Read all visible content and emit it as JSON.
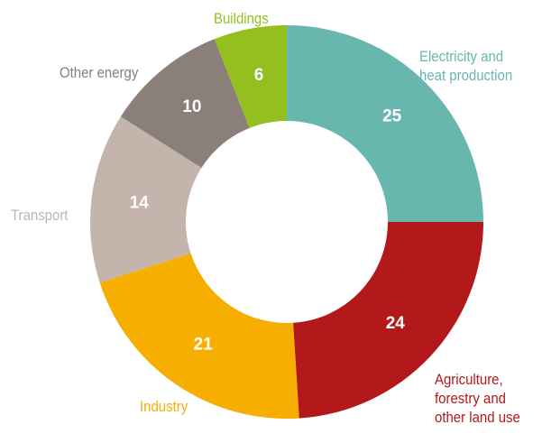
{
  "chart_data": {
    "type": "donut",
    "categories": [
      "Electricity and heat production",
      "Agriculture, forestry and other land use",
      "Industry",
      "Transport",
      "Other energy",
      "Buildings"
    ],
    "values": [
      25,
      24,
      21,
      14,
      10,
      6
    ],
    "colors": [
      "#67b7ae",
      "#b3191b",
      "#f6ae00",
      "#c3b5ab",
      "#8a7f79",
      "#93c01f"
    ]
  }
}
